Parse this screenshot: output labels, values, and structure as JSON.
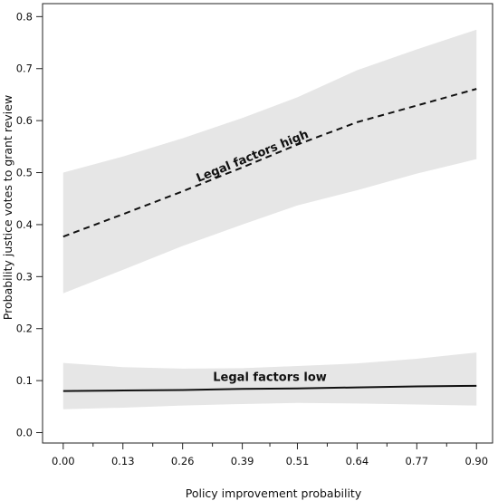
{
  "chart_data": {
    "type": "line",
    "title": "",
    "xlabel": "Policy improvement probability",
    "ylabel": "Probability justice votes to grant review",
    "x_ticks": [
      "0.00",
      "0.13",
      "0.26",
      "0.39",
      "0.51",
      "0.64",
      "0.77",
      "0.90"
    ],
    "y_ticks": [
      "0.0",
      "0.1",
      "0.2",
      "0.3",
      "0.4",
      "0.5",
      "0.6",
      "0.7",
      "0.8"
    ],
    "xlim": [
      -0.045,
      0.935
    ],
    "ylim": [
      -0.02,
      0.825
    ],
    "grid": false,
    "series": [
      {
        "name": "Legal factors high",
        "style": "dashed",
        "color": "#111111",
        "x": [
          0.0,
          0.13,
          0.26,
          0.39,
          0.51,
          0.64,
          0.77,
          0.9
        ],
        "y": [
          0.377,
          0.42,
          0.464,
          0.51,
          0.554,
          0.597,
          0.629,
          0.661
        ],
        "ci_upper": [
          0.5,
          0.531,
          0.566,
          0.605,
          0.645,
          0.697,
          0.737,
          0.775
        ],
        "ci_lower": [
          0.268,
          0.313,
          0.359,
          0.4,
          0.437,
          0.466,
          0.498,
          0.526
        ]
      },
      {
        "name": "Legal factors low",
        "style": "solid",
        "color": "#111111",
        "x": [
          0.0,
          0.13,
          0.26,
          0.39,
          0.51,
          0.64,
          0.77,
          0.9
        ],
        "y": [
          0.08,
          0.081,
          0.082,
          0.084,
          0.085,
          0.087,
          0.089,
          0.09
        ],
        "ci_upper": [
          0.134,
          0.126,
          0.123,
          0.124,
          0.128,
          0.133,
          0.142,
          0.154
        ],
        "ci_lower": [
          0.045,
          0.048,
          0.052,
          0.055,
          0.057,
          0.056,
          0.054,
          0.052
        ]
      }
    ],
    "band_color": "#e6e6e6"
  }
}
